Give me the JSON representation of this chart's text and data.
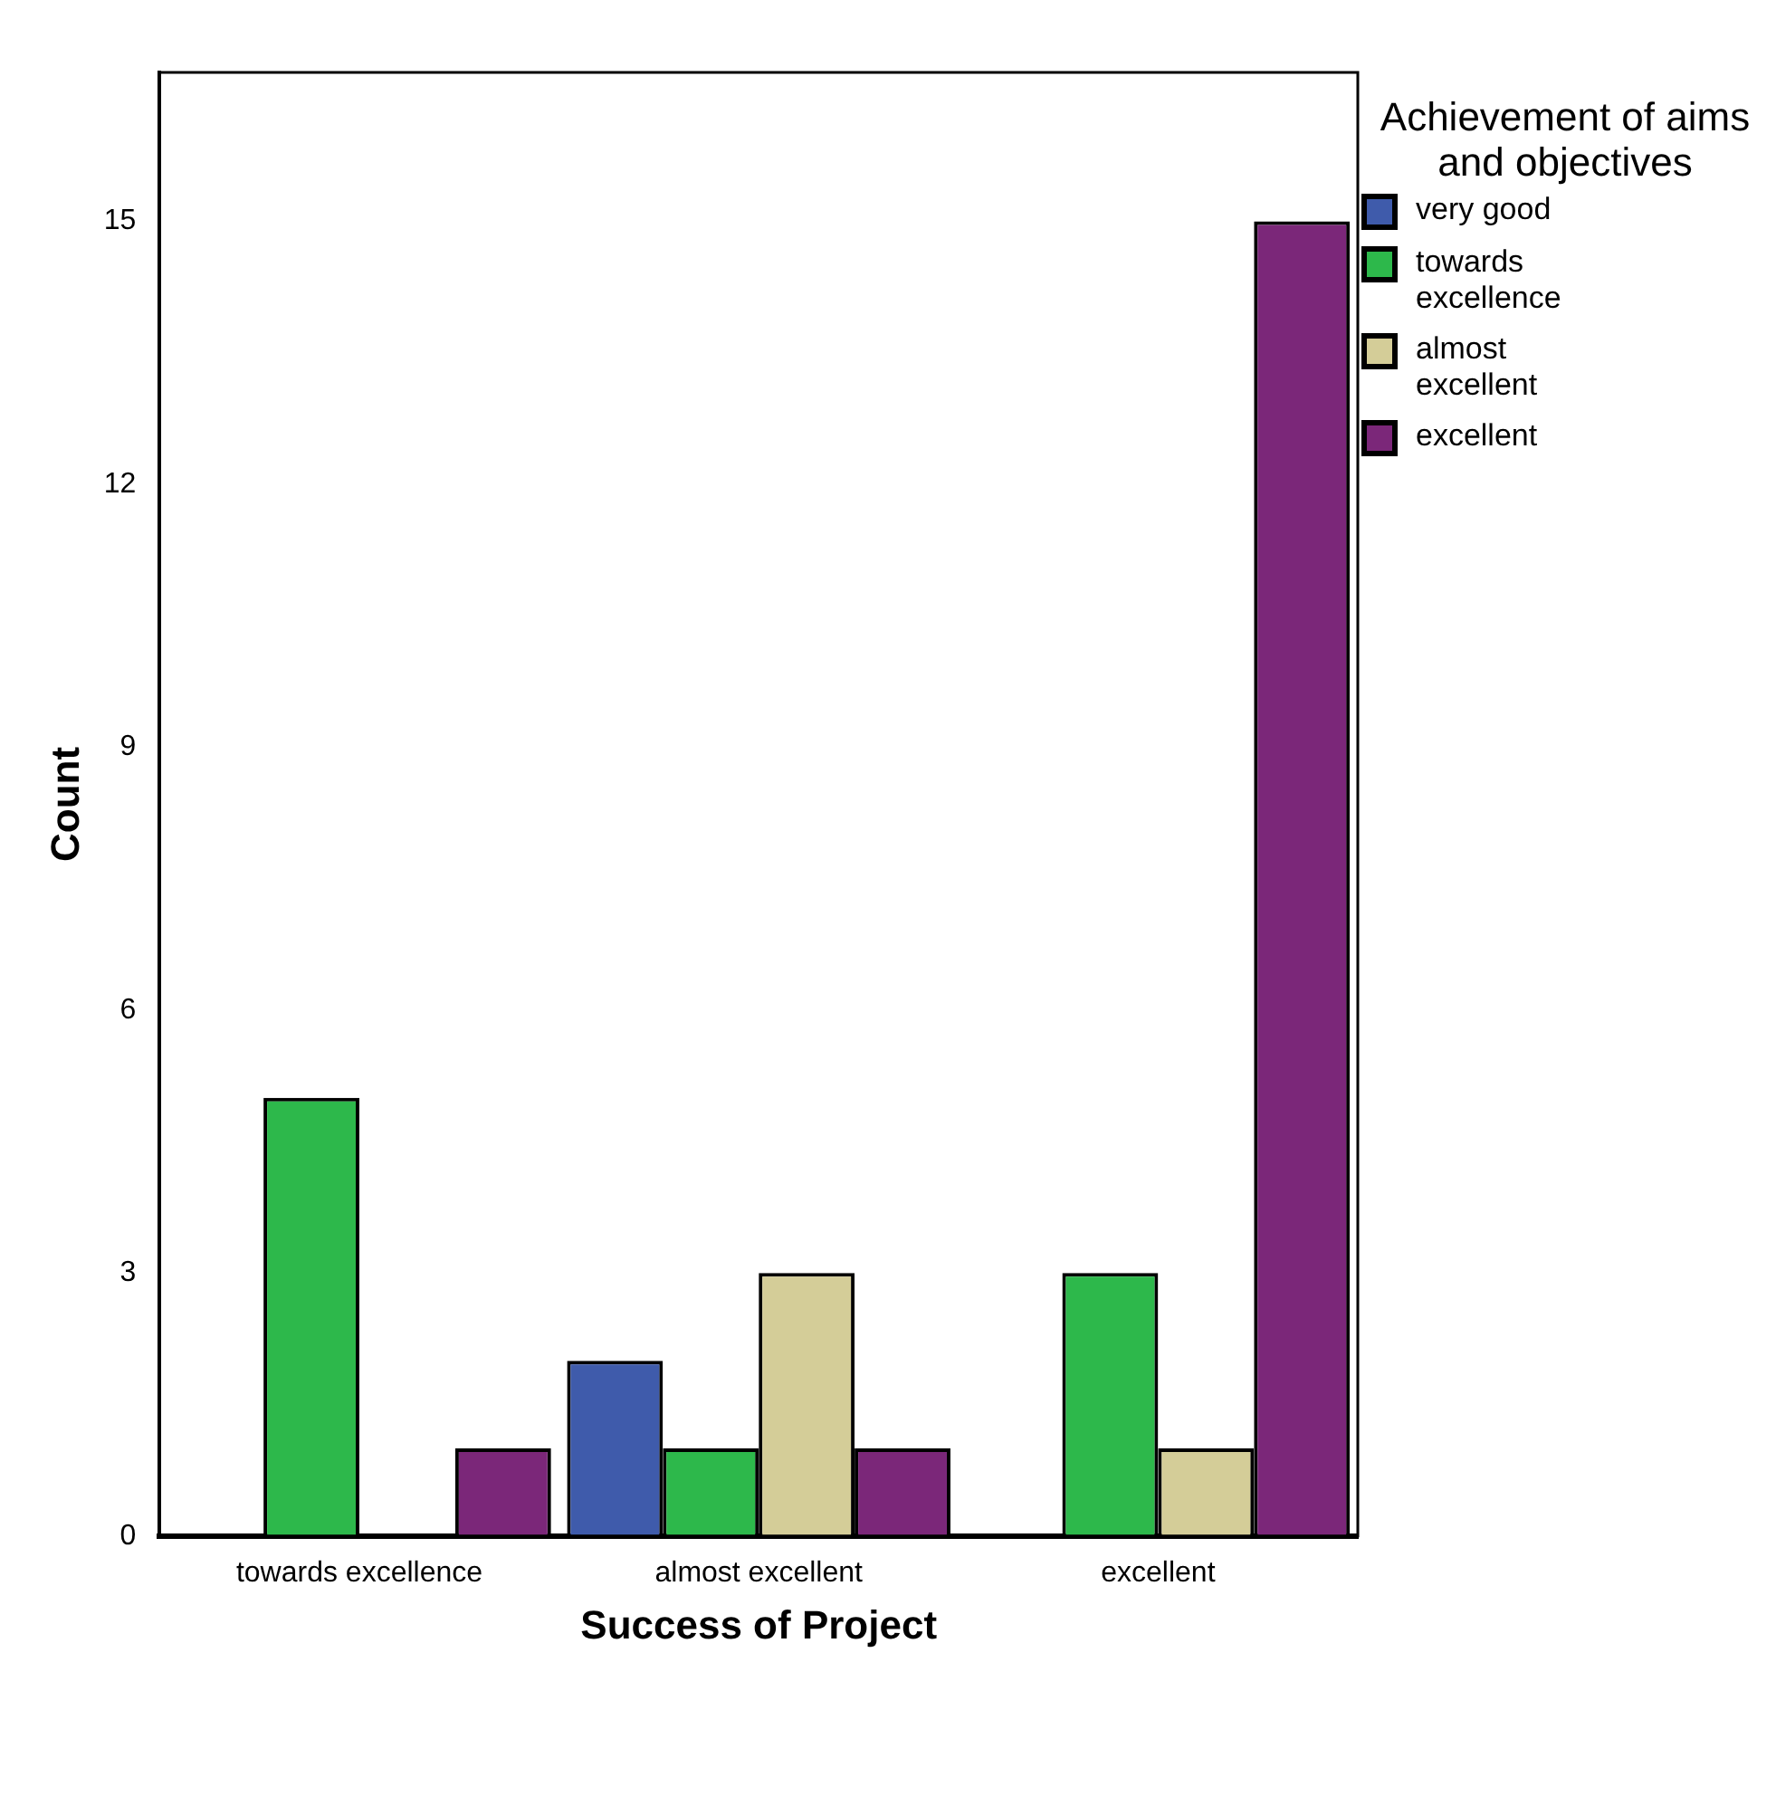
{
  "chart_data": {
    "type": "bar",
    "xlabel": "Success of Project",
    "ylabel": "Count",
    "legend_title": "Achievement of aims and objectives",
    "legend": "right",
    "categories": [
      "towards excellence",
      "almost excellent",
      "excellent"
    ],
    "series": [
      {
        "name": "very good",
        "color": "#3f5bab",
        "values": [
          0,
          2,
          0
        ]
      },
      {
        "name": "towards excellence",
        "color": "#2db84b",
        "values": [
          5,
          1,
          3
        ]
      },
      {
        "name": "almost excellent",
        "color": "#d4cd98",
        "values": [
          0,
          3,
          1
        ]
      },
      {
        "name": "excellent",
        "color": "#7b2779",
        "values": [
          1,
          1,
          15
        ]
      }
    ],
    "ylim": [
      0,
      16.7
    ],
    "yticks": [
      0,
      3,
      6,
      9,
      12,
      15
    ],
    "grid": false
  }
}
